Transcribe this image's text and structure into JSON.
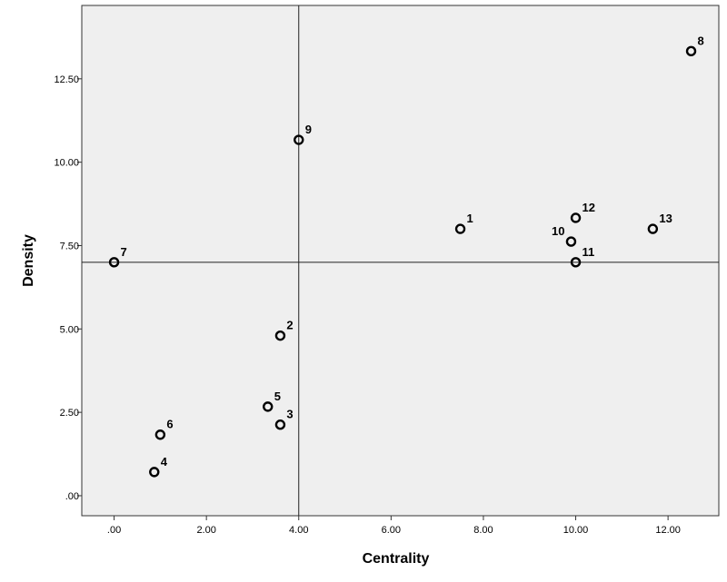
{
  "chart_data": {
    "type": "scatter",
    "xlabel": "Centrality",
    "ylabel": "Density",
    "xlim": [
      -0.7,
      13.1
    ],
    "ylim": [
      -0.6,
      14.7
    ],
    "x_ticks": [
      0,
      2,
      4,
      6,
      8,
      10,
      12
    ],
    "x_tick_labels": [
      ".00",
      "2.00",
      "4.00",
      "6.00",
      "8.00",
      "10.00",
      "12.00"
    ],
    "y_ticks": [
      0,
      2.5,
      5,
      7.5,
      10,
      12.5
    ],
    "y_tick_labels": [
      ".00",
      "2.50",
      "5.00",
      "7.50",
      "10.00",
      "12.50"
    ],
    "reference_lines": {
      "x": 4.0,
      "y": 7.0
    },
    "grid": false,
    "plot_background": "#efefef",
    "points": [
      {
        "label": "1",
        "x": 7.5,
        "y": 8.0,
        "label_pos": "upper-right"
      },
      {
        "label": "2",
        "x": 3.6,
        "y": 4.8,
        "label_pos": "upper-right"
      },
      {
        "label": "3",
        "x": 3.6,
        "y": 2.13,
        "label_pos": "upper-right"
      },
      {
        "label": "4",
        "x": 0.87,
        "y": 0.71,
        "label_pos": "upper-right"
      },
      {
        "label": "5",
        "x": 3.33,
        "y": 2.67,
        "label_pos": "upper-right"
      },
      {
        "label": "6",
        "x": 1.0,
        "y": 1.83,
        "label_pos": "upper-right"
      },
      {
        "label": "7",
        "x": 0.0,
        "y": 7.0,
        "label_pos": "upper-right"
      },
      {
        "label": "8",
        "x": 12.5,
        "y": 13.33,
        "label_pos": "upper-right"
      },
      {
        "label": "9",
        "x": 4.0,
        "y": 10.67,
        "label_pos": "upper-right"
      },
      {
        "label": "10",
        "x": 9.9,
        "y": 7.62,
        "label_pos": "upper-left"
      },
      {
        "label": "11",
        "x": 10.0,
        "y": 7.0,
        "label_pos": "upper-right"
      },
      {
        "label": "12",
        "x": 10.0,
        "y": 8.33,
        "label_pos": "upper-right"
      },
      {
        "label": "13",
        "x": 11.67,
        "y": 8.0,
        "label_pos": "upper-right"
      }
    ]
  }
}
